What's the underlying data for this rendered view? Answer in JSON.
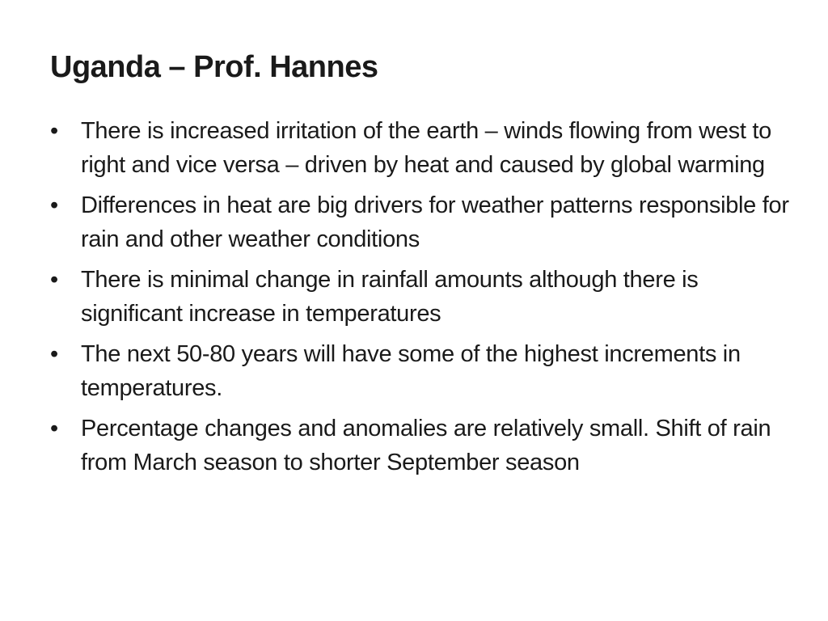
{
  "title": "Uganda – Prof. Hannes",
  "bullets": [
    "There is increased irritation of the earth – winds flowing from west to right and vice versa – driven by heat and caused by global warming",
    "Differences in heat are big drivers for weather patterns responsible for rain and other weather conditions",
    "There is minimal change in rainfall amounts although there is significant increase in temperatures",
    "The next 50-80 years will have some of the highest increments in temperatures.",
    "Percentage changes and anomalies are relatively small. Shift of rain from March season to shorter September season"
  ]
}
